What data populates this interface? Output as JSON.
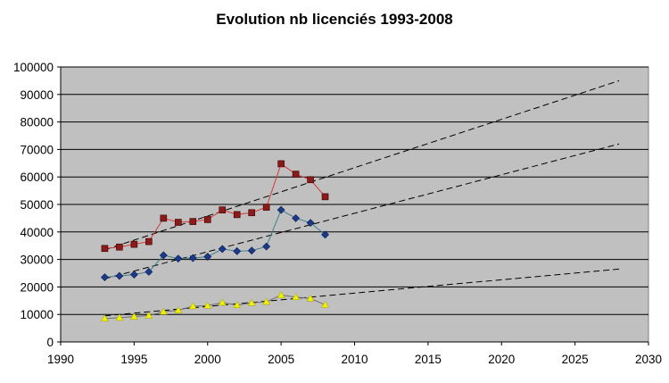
{
  "chart_data": {
    "type": "scatter",
    "title": "Evolution nb licenciés 1993-2008",
    "xlabel": "",
    "ylabel": "",
    "xlim": [
      1990,
      2030
    ],
    "ylim": [
      0,
      100000
    ],
    "x_ticks": [
      "1990",
      "1995",
      "2000",
      "2005",
      "2010",
      "2015",
      "2020",
      "2025",
      "2030"
    ],
    "y_ticks": [
      "0",
      "10000",
      "20000",
      "30000",
      "40000",
      "50000",
      "60000",
      "70000",
      "80000",
      "90000",
      "100000"
    ],
    "grid": "horizontal",
    "plot_background": "#c0c0c0",
    "series": [
      {
        "color": "#8b1a1a",
        "line_color": "#d33b3b",
        "marker": "square",
        "x": [
          1993,
          1994,
          1995,
          1996,
          1997,
          1998,
          1999,
          2000,
          2001,
          2002,
          2003,
          2004,
          2005,
          2006,
          2007,
          2008
        ],
        "values": [
          34000,
          34500,
          35500,
          36500,
          45000,
          43500,
          43800,
          44500,
          48000,
          46300,
          47000,
          49000,
          64800,
          61000,
          59000,
          52800
        ],
        "trend": {
          "x": [
            1993,
            2028
          ],
          "values": [
            33500,
            95000
          ]
        }
      },
      {
        "color": "#1c3a8a",
        "line_color": "#3f7f88",
        "marker": "diamond",
        "x": [
          1993,
          1994,
          1995,
          1996,
          1997,
          1998,
          1999,
          2000,
          2001,
          2002,
          2003,
          2004,
          2005,
          2006,
          2007,
          2008
        ],
        "values": [
          23500,
          24000,
          24500,
          25500,
          31500,
          30300,
          30500,
          31000,
          33800,
          33000,
          33200,
          34700,
          48000,
          45000,
          43300,
          39000
        ],
        "trend": {
          "x": [
            1993,
            2028
          ],
          "values": [
            23000,
            72000
          ]
        }
      },
      {
        "color": "#f0f000",
        "line_color": "#6e6e6e",
        "marker": "triangle",
        "x": [
          1993,
          1994,
          1995,
          1996,
          1997,
          1998,
          1999,
          2000,
          2001,
          2002,
          2003,
          2004,
          2005,
          2006,
          2007,
          2008
        ],
        "values": [
          8500,
          8800,
          9200,
          9600,
          11000,
          11500,
          13000,
          13200,
          14300,
          13400,
          14200,
          14600,
          17000,
          16300,
          15800,
          13500
        ],
        "trend": {
          "x": [
            1993,
            2028
          ],
          "values": [
            9500,
            26500
          ]
        }
      }
    ]
  }
}
